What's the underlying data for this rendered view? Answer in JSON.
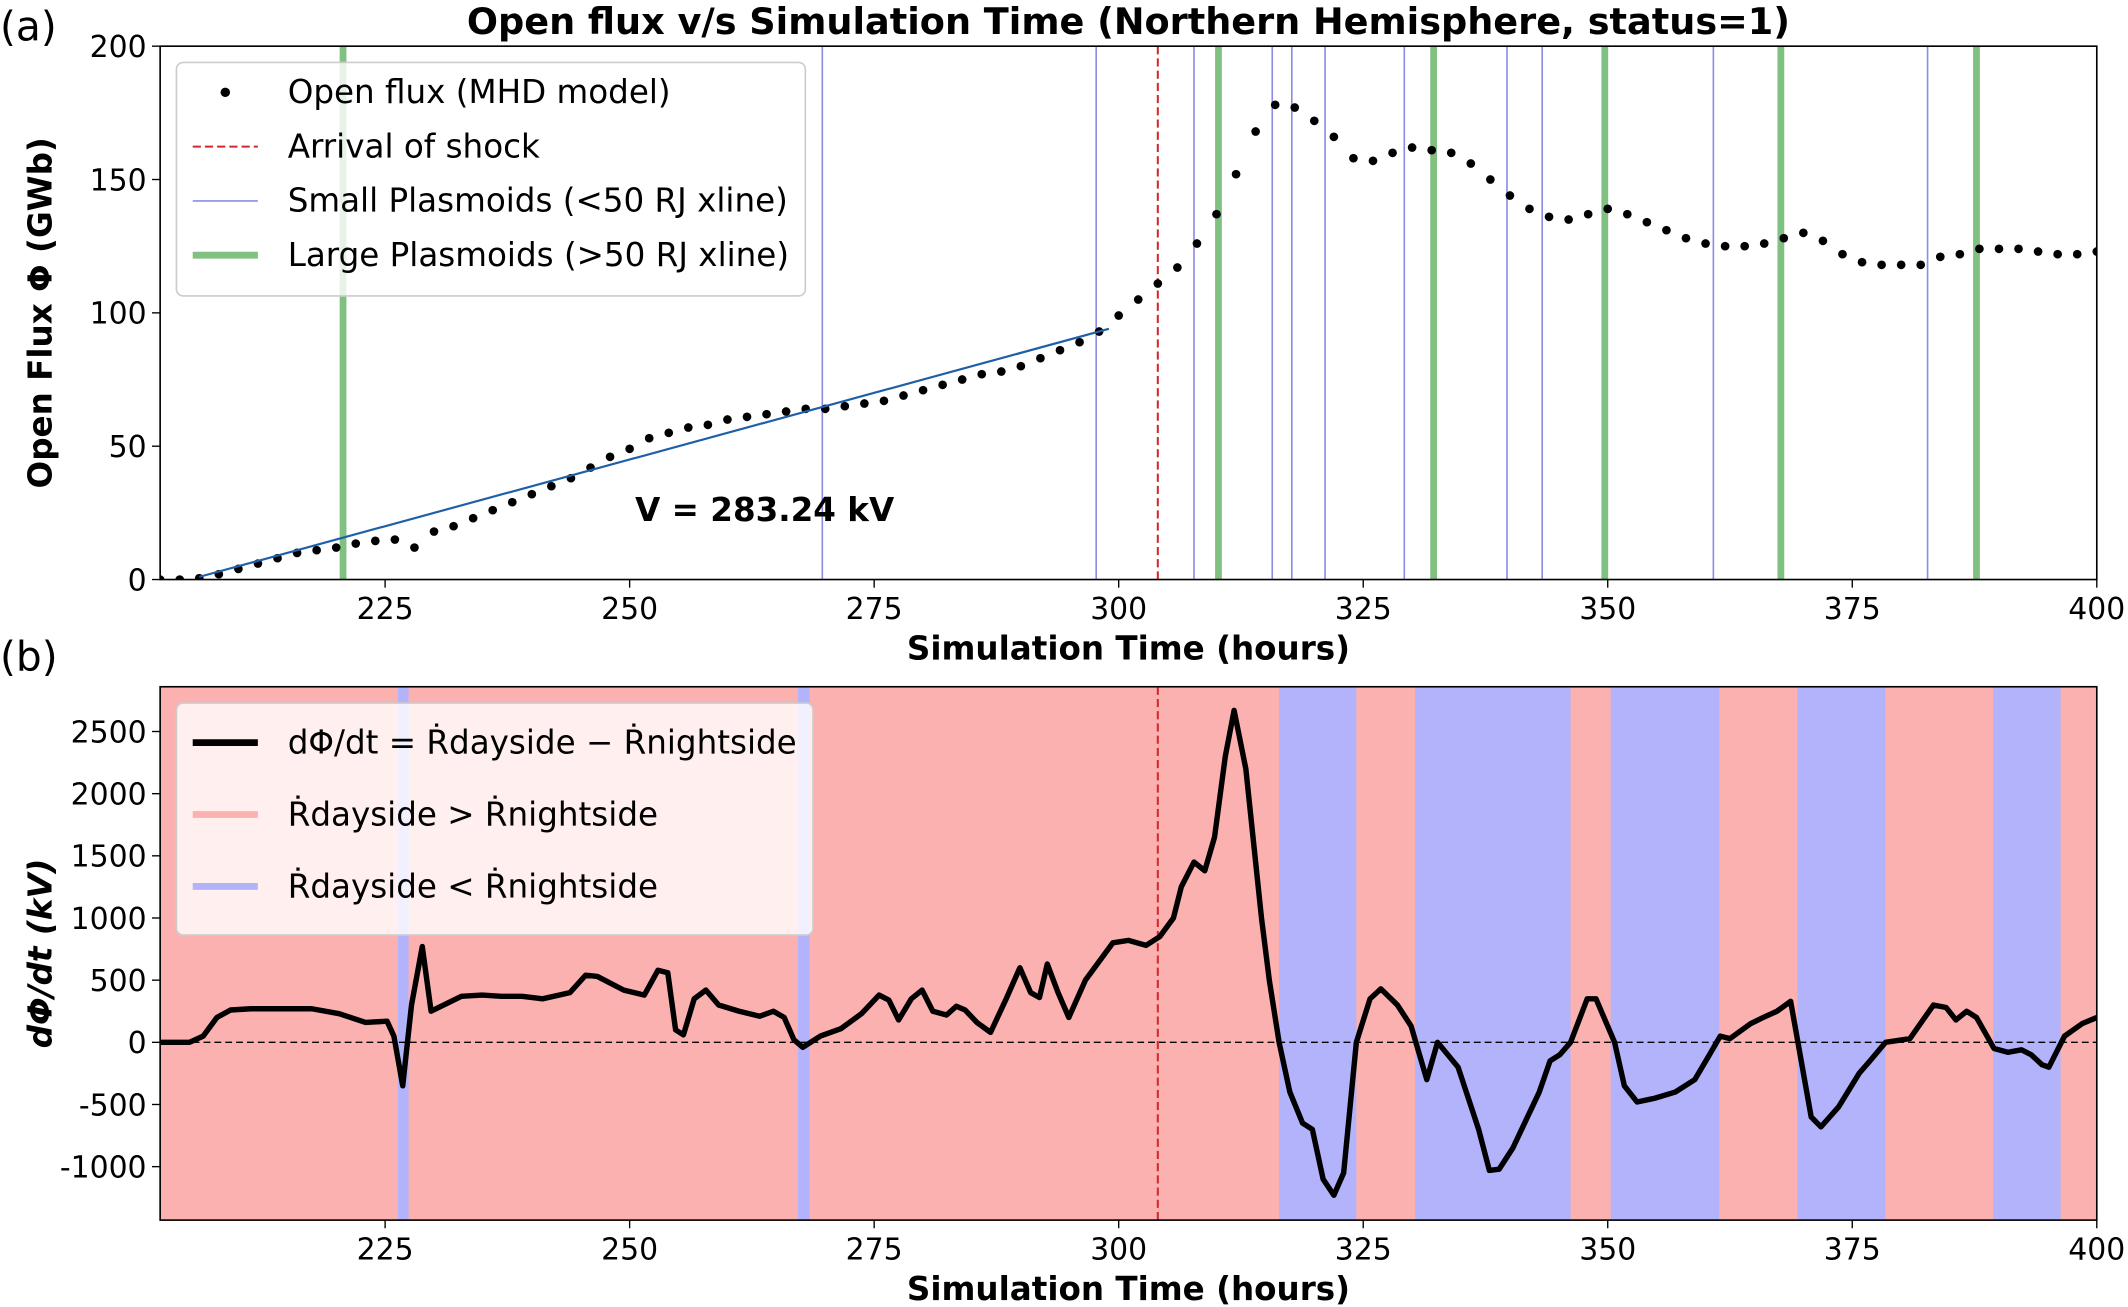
{
  "chart_data": [
    {
      "type": "scatter",
      "panel_label": "(a)",
      "title": "Open flux v/s Simulation Time (Northern Hemisphere, status=1)",
      "xlabel": "Simulation Time (hours)",
      "ylabel": "Open Flux Φ (GWb)",
      "xlim": [
        202,
        400
      ],
      "ylim": [
        0,
        200
      ],
      "xticks": [
        225,
        250,
        275,
        300,
        325,
        350,
        375,
        400
      ],
      "yticks": [
        0,
        50,
        100,
        150,
        200
      ],
      "series": [
        {
          "name": "Open flux (MHD model)",
          "color": "#000000",
          "x": [
            202,
            204,
            206,
            208,
            210,
            212,
            214,
            216,
            218,
            220,
            222,
            224,
            226,
            228,
            230,
            232,
            234,
            236,
            238,
            240,
            242,
            244,
            246,
            248,
            250,
            252,
            254,
            256,
            258,
            260,
            262,
            264,
            266,
            268,
            270,
            272,
            274,
            276,
            278,
            280,
            282,
            284,
            286,
            288,
            290,
            292,
            294,
            296,
            298,
            300,
            302,
            304,
            306,
            308,
            310,
            312,
            314,
            316,
            318,
            320,
            322,
            324,
            326,
            328,
            330,
            332,
            334,
            336,
            338,
            340,
            342,
            344,
            346,
            348,
            350,
            352,
            354,
            356,
            358,
            360,
            362,
            364,
            366,
            368,
            370,
            372,
            374,
            376,
            378,
            380,
            382,
            384,
            386,
            388,
            390,
            392,
            394,
            396,
            398,
            400
          ],
          "values": [
            0,
            0,
            0.5,
            2,
            4,
            6,
            8,
            10,
            11,
            12,
            13.5,
            14.5,
            15,
            12,
            18,
            20,
            23,
            26,
            29,
            32,
            35,
            38,
            42,
            46,
            49,
            53,
            55,
            57,
            58,
            60,
            61,
            62,
            63,
            64,
            64,
            65,
            66,
            67,
            69,
            71,
            73,
            75,
            77,
            78,
            80,
            83,
            86,
            89,
            93,
            99,
            105,
            111,
            117,
            126,
            137,
            152,
            168,
            178,
            177,
            172,
            166,
            158,
            157,
            160,
            162,
            161,
            160,
            156,
            150,
            144,
            139,
            136,
            135,
            137,
            139,
            137,
            134,
            131,
            128,
            126,
            125,
            125,
            126,
            128,
            130,
            127,
            122,
            119,
            118,
            118,
            118,
            121,
            122,
            124,
            124,
            124,
            123,
            122,
            122,
            123
          ]
        }
      ],
      "fit": {
        "color": "#1f5fa8",
        "x": [
          206,
          299
        ],
        "values": [
          1,
          94
        ]
      },
      "annotation": "V = 283.24 kV",
      "vlines": [
        {
          "name": "Arrival of shock",
          "color": "#d62728",
          "linestyle": "dashed",
          "linewidth": 1.5,
          "x": [
            304
          ]
        },
        {
          "name": "Small Plasmoids (<50 RJ xline)",
          "color": "#8c8ce6",
          "linestyle": "solid",
          "linewidth": 1.2,
          "x": [
            269.7,
            297.7,
            307.7,
            315.7,
            317.7,
            321.1,
            329.2,
            339.7,
            343.3,
            360.8,
            382.7
          ]
        },
        {
          "name": "Large Plasmoids (>50 RJ xline)",
          "color": "#80c080",
          "linestyle": "solid",
          "linewidth": 5,
          "x": [
            220.7,
            310.2,
            332.2,
            349.7,
            367.7,
            387.7
          ]
        }
      ],
      "legend": "upper left"
    },
    {
      "type": "line",
      "panel_label": "(b)",
      "xlabel": "Simulation Time (hours)",
      "ylabel": "dΦ/dt (kV)",
      "xlim": [
        202,
        400
      ],
      "ylim": [
        -1430,
        2860
      ],
      "xticks": [
        225,
        250,
        275,
        300,
        325,
        350,
        375,
        400
      ],
      "yticks": [
        -1000,
        -500,
        0,
        500,
        1000,
        1500,
        2000,
        2500
      ],
      "series": [
        {
          "name": "dΦ/dt = Ṙdayside − Ṙnightside",
          "color": "#000000",
          "x": [
            202,
            205,
            206.4,
            207.8,
            209.2,
            211.3,
            214.8,
            217.5,
            220.3,
            223,
            225.2,
            225.9,
            226.8,
            227.7,
            228.8,
            229.7,
            232.8,
            234.9,
            236.9,
            239,
            241.1,
            243.9,
            245.5,
            246.7,
            249.4,
            251.5,
            252.9,
            253.9,
            254.7,
            255.5,
            256.6,
            257.8,
            259.1,
            261.2,
            263.3,
            264.7,
            265.8,
            266.8,
            267.7,
            269.5,
            271.6,
            273.7,
            275.5,
            276.5,
            277.5,
            278.8,
            279.9,
            281,
            282.4,
            283.4,
            284.3,
            285.5,
            286.9,
            288.5,
            289.9,
            291,
            291.9,
            292.7,
            293.8,
            294.9,
            296.6,
            298,
            299.4,
            301,
            302.8,
            304.2,
            305.6,
            306.4,
            307.7,
            308.8,
            309.8,
            310.9,
            311.8,
            313,
            314.6,
            315.4,
            316.4,
            317.5,
            318.8,
            319.8,
            320.9,
            322,
            323,
            324.3,
            325.7,
            326.8,
            328.5,
            329.9,
            331.5,
            332.6,
            334.7,
            336.8,
            337.9,
            338.9,
            340.3,
            343,
            344.1,
            345.1,
            346.2,
            347.9,
            348.8,
            350.7,
            351.7,
            353,
            354.8,
            356.9,
            358.9,
            360.4,
            361.5,
            362.5,
            364.6,
            365.9,
            367.3,
            368.7,
            370.8,
            371.8,
            373.6,
            375.7,
            376.8,
            378.4,
            380.9,
            383.3,
            384.6,
            385.6,
            386.7,
            387.7,
            389.5,
            390.9,
            392.3,
            393.3,
            394.4,
            395.1,
            396.7,
            398.5,
            400
          ],
          "values": [
            0,
            0,
            50,
            200,
            260,
            270,
            270,
            270,
            230,
            160,
            170,
            50,
            -350,
            300,
            770,
            250,
            370,
            380,
            370,
            370,
            350,
            400,
            540,
            530,
            420,
            380,
            580,
            560,
            100,
            60,
            350,
            420,
            300,
            250,
            210,
            250,
            200,
            20,
            -40,
            50,
            110,
            230,
            380,
            340,
            180,
            350,
            420,
            250,
            220,
            290,
            260,
            160,
            80,
            350,
            600,
            400,
            360,
            630,
            400,
            200,
            500,
            650,
            800,
            820,
            780,
            850,
            1000,
            1250,
            1450,
            1380,
            1650,
            2300,
            2670,
            2200,
            1000,
            500,
            0,
            -400,
            -650,
            -700,
            -1100,
            -1230,
            -1050,
            0,
            350,
            430,
            300,
            130,
            -300,
            0,
            -200,
            -700,
            -1030,
            -1020,
            -850,
            -400,
            -150,
            -100,
            0,
            350,
            350,
            0,
            -350,
            -480,
            -450,
            -400,
            -300,
            -100,
            50,
            30,
            150,
            200,
            250,
            330,
            -600,
            -680,
            -520,
            -250,
            -150,
            0,
            30,
            300,
            280,
            180,
            250,
            200,
            -50,
            -80,
            -60,
            -100,
            -180,
            -200,
            50,
            150,
            200
          ]
        }
      ],
      "spans": [
        {
          "name": "Ṙdayside > Ṙnightside",
          "color": "#fcb1b1",
          "ranges": [
            [
              202,
              400
            ]
          ]
        },
        {
          "name": "Ṙdayside < Ṙnightside",
          "color": "#b3b3fb",
          "ranges": [
            [
              226.3,
              227.4
            ],
            [
              267.2,
              268.4
            ],
            [
              316.4,
              324.3
            ],
            [
              330.3,
              346.2
            ],
            [
              350.3,
              361.4
            ],
            [
              369.4,
              378.4
            ],
            [
              389.4,
              396.3
            ]
          ]
        }
      ],
      "vlines": [
        {
          "color": "#d62728",
          "linestyle": "dashed",
          "linewidth": 1.5,
          "x": [
            304
          ]
        }
      ],
      "hlines": [
        0
      ],
      "legend": "upper left"
    }
  ]
}
